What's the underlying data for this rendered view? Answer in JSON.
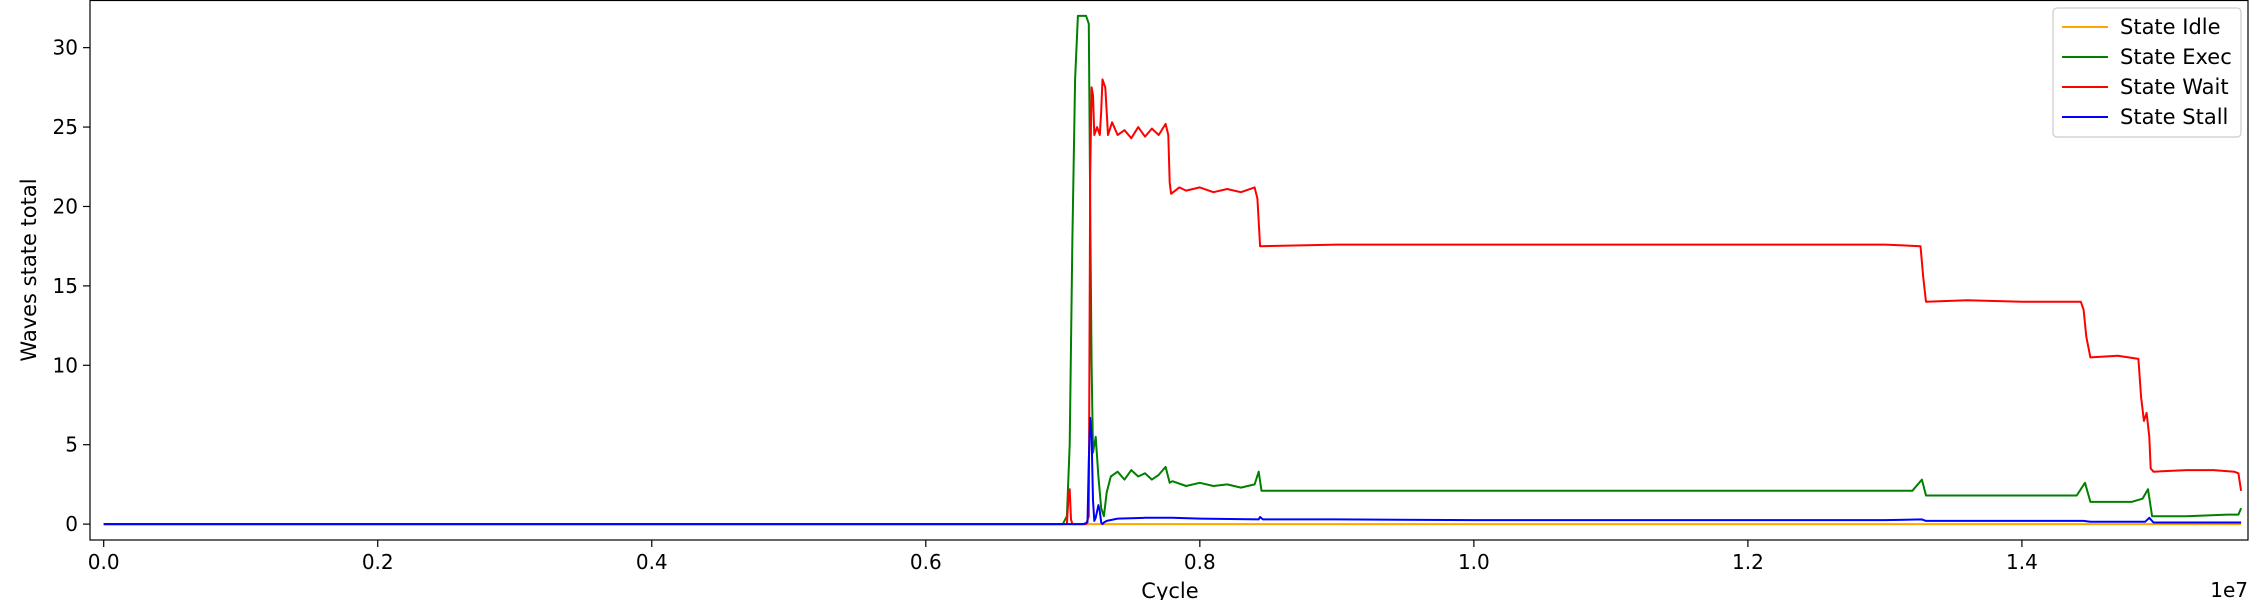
{
  "chart_data": {
    "type": "line",
    "xlabel": "Cycle",
    "ylabel": "Waves state total",
    "x_offset_label": "1e7",
    "xlim": [
      -0.01,
      1.565
    ],
    "ylim": [
      -1,
      33
    ],
    "x_ticks": [
      0.0,
      0.2,
      0.4,
      0.6,
      0.8,
      1.0,
      1.2,
      1.4
    ],
    "x_tick_labels": [
      "0.0",
      "0.2",
      "0.4",
      "0.6",
      "0.8",
      "1.0",
      "1.2",
      "1.4"
    ],
    "y_ticks": [
      0,
      5,
      10,
      15,
      20,
      25,
      30
    ],
    "y_tick_labels": [
      "0",
      "5",
      "10",
      "15",
      "20",
      "25",
      "30"
    ],
    "grid": false,
    "legend_position": "top-right",
    "series": [
      {
        "name": "State Idle",
        "color": "#ffa500",
        "points": [
          [
            0.0,
            0
          ],
          [
            0.7,
            0
          ],
          [
            0.72,
            0
          ],
          [
            0.8,
            0
          ],
          [
            1.0,
            0
          ],
          [
            1.2,
            0
          ],
          [
            1.4,
            0
          ],
          [
            1.56,
            0
          ]
        ]
      },
      {
        "name": "State Exec",
        "color": "#008000",
        "points": [
          [
            0.0,
            0
          ],
          [
            0.7,
            0
          ],
          [
            0.703,
            0.5
          ],
          [
            0.705,
            5
          ],
          [
            0.707,
            18
          ],
          [
            0.709,
            28
          ],
          [
            0.711,
            32
          ],
          [
            0.714,
            32
          ],
          [
            0.717,
            32
          ],
          [
            0.719,
            31.5
          ],
          [
            0.72,
            20
          ],
          [
            0.721,
            10
          ],
          [
            0.722,
            4.5
          ],
          [
            0.724,
            5.5
          ],
          [
            0.726,
            3
          ],
          [
            0.728,
            1
          ],
          [
            0.73,
            0.5
          ],
          [
            0.732,
            2
          ],
          [
            0.735,
            3
          ],
          [
            0.74,
            3.3
          ],
          [
            0.745,
            2.8
          ],
          [
            0.75,
            3.4
          ],
          [
            0.755,
            3.0
          ],
          [
            0.76,
            3.2
          ],
          [
            0.765,
            2.8
          ],
          [
            0.77,
            3.1
          ],
          [
            0.775,
            3.6
          ],
          [
            0.778,
            2.6
          ],
          [
            0.78,
            2.7
          ],
          [
            0.79,
            2.4
          ],
          [
            0.8,
            2.6
          ],
          [
            0.81,
            2.4
          ],
          [
            0.82,
            2.5
          ],
          [
            0.83,
            2.3
          ],
          [
            0.84,
            2.5
          ],
          [
            0.843,
            3.3
          ],
          [
            0.845,
            2.1
          ],
          [
            0.9,
            2.1
          ],
          [
            0.95,
            2.1
          ],
          [
            1.0,
            2.1
          ],
          [
            1.05,
            2.1
          ],
          [
            1.1,
            2.1
          ],
          [
            1.15,
            2.1
          ],
          [
            1.2,
            2.1
          ],
          [
            1.25,
            2.1
          ],
          [
            1.32,
            2.1
          ],
          [
            1.327,
            2.8
          ],
          [
            1.33,
            1.8
          ],
          [
            1.38,
            1.8
          ],
          [
            1.44,
            1.8
          ],
          [
            1.446,
            2.6
          ],
          [
            1.45,
            1.4
          ],
          [
            1.48,
            1.4
          ],
          [
            1.488,
            1.6
          ],
          [
            1.492,
            2.2
          ],
          [
            1.495,
            0.5
          ],
          [
            1.52,
            0.5
          ],
          [
            1.55,
            0.6
          ],
          [
            1.558,
            0.6
          ],
          [
            1.56,
            1.0
          ]
        ]
      },
      {
        "name": "State Wait",
        "color": "#ff0000",
        "points": [
          [
            0.0,
            0
          ],
          [
            0.7,
            0
          ],
          [
            0.703,
            0
          ],
          [
            0.704,
            1.5
          ],
          [
            0.705,
            2.2
          ],
          [
            0.706,
            0.3
          ],
          [
            0.707,
            0
          ],
          [
            0.717,
            0
          ],
          [
            0.719,
            0.5
          ],
          [
            0.72,
            22
          ],
          [
            0.721,
            27.5
          ],
          [
            0.722,
            27
          ],
          [
            0.723,
            24.5
          ],
          [
            0.725,
            25
          ],
          [
            0.727,
            24.5
          ],
          [
            0.728,
            26
          ],
          [
            0.729,
            28
          ],
          [
            0.731,
            27.5
          ],
          [
            0.733,
            24.5
          ],
          [
            0.736,
            25.3
          ],
          [
            0.74,
            24.5
          ],
          [
            0.745,
            24.8
          ],
          [
            0.75,
            24.3
          ],
          [
            0.755,
            25.0
          ],
          [
            0.76,
            24.4
          ],
          [
            0.765,
            24.9
          ],
          [
            0.77,
            24.5
          ],
          [
            0.775,
            25.2
          ],
          [
            0.777,
            24.5
          ],
          [
            0.778,
            21.5
          ],
          [
            0.779,
            20.8
          ],
          [
            0.785,
            21.2
          ],
          [
            0.79,
            21.0
          ],
          [
            0.8,
            21.2
          ],
          [
            0.81,
            20.9
          ],
          [
            0.82,
            21.1
          ],
          [
            0.83,
            20.9
          ],
          [
            0.84,
            21.2
          ],
          [
            0.842,
            20.5
          ],
          [
            0.844,
            17.5
          ],
          [
            0.9,
            17.6
          ],
          [
            0.95,
            17.6
          ],
          [
            1.0,
            17.6
          ],
          [
            1.05,
            17.6
          ],
          [
            1.1,
            17.6
          ],
          [
            1.15,
            17.6
          ],
          [
            1.2,
            17.6
          ],
          [
            1.25,
            17.6
          ],
          [
            1.3,
            17.6
          ],
          [
            1.326,
            17.5
          ],
          [
            1.328,
            15.5
          ],
          [
            1.33,
            14.0
          ],
          [
            1.36,
            14.1
          ],
          [
            1.4,
            14.0
          ],
          [
            1.443,
            14.0
          ],
          [
            1.445,
            13.5
          ],
          [
            1.447,
            11.8
          ],
          [
            1.45,
            10.5
          ],
          [
            1.47,
            10.6
          ],
          [
            1.485,
            10.4
          ],
          [
            1.487,
            8.0
          ],
          [
            1.489,
            6.5
          ],
          [
            1.491,
            7.0
          ],
          [
            1.493,
            5.5
          ],
          [
            1.494,
            3.5
          ],
          [
            1.496,
            3.3
          ],
          [
            1.52,
            3.4
          ],
          [
            1.54,
            3.4
          ],
          [
            1.555,
            3.3
          ],
          [
            1.558,
            3.2
          ],
          [
            1.56,
            2.1
          ]
        ]
      },
      {
        "name": "State Stall",
        "color": "#0000ff",
        "points": [
          [
            0.0,
            0
          ],
          [
            0.715,
            0
          ],
          [
            0.718,
            0.1
          ],
          [
            0.719,
            4
          ],
          [
            0.72,
            6.7
          ],
          [
            0.721,
            5.5
          ],
          [
            0.722,
            1.5
          ],
          [
            0.723,
            0.2
          ],
          [
            0.724,
            0.4
          ],
          [
            0.726,
            1.2
          ],
          [
            0.727,
            0.8
          ],
          [
            0.728,
            0.1
          ],
          [
            0.729,
            0
          ],
          [
            0.73,
            0.1
          ],
          [
            0.732,
            0.2
          ],
          [
            0.74,
            0.35
          ],
          [
            0.76,
            0.4
          ],
          [
            0.78,
            0.4
          ],
          [
            0.8,
            0.35
          ],
          [
            0.843,
            0.3
          ],
          [
            0.844,
            0.45
          ],
          [
            0.846,
            0.3
          ],
          [
            0.9,
            0.3
          ],
          [
            1.0,
            0.25
          ],
          [
            1.1,
            0.25
          ],
          [
            1.2,
            0.25
          ],
          [
            1.3,
            0.25
          ],
          [
            1.327,
            0.3
          ],
          [
            1.33,
            0.2
          ],
          [
            1.4,
            0.2
          ],
          [
            1.445,
            0.2
          ],
          [
            1.45,
            0.15
          ],
          [
            1.49,
            0.15
          ],
          [
            1.493,
            0.4
          ],
          [
            1.496,
            0.1
          ],
          [
            1.56,
            0.1
          ]
        ]
      }
    ]
  }
}
